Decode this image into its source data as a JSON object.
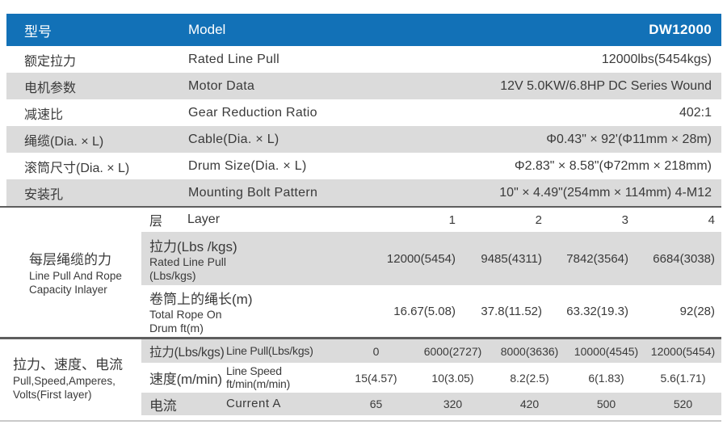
{
  "colors": {
    "accent": "#1271B7",
    "header_text": "#FFFFFF",
    "row_shade": "#DBDBDB",
    "text": "#3A3A3A",
    "divider_dark": "#5E5E5E",
    "divider_light": "#C9C9C9"
  },
  "header": {
    "cn": "型号",
    "en": "Model",
    "value": "DW12000"
  },
  "spec_rows": [
    {
      "cn": "额定拉力",
      "en": "Rated Line Pull",
      "value": "12000lbs(5454kgs)"
    },
    {
      "cn": "电机参数",
      "en": "Motor Data",
      "value": "12V 5.0KW/6.8HP DC Series Wound"
    },
    {
      "cn": "减速比",
      "en": "Gear Reduction Ratio",
      "value": "402:1"
    },
    {
      "cn": "绳缆(Dia. × L)",
      "en": "Cable(Dia. × L)",
      "value": "Φ0.43\" × 92'(Φ11mm × 28m)"
    },
    {
      "cn": "滚筒尺寸(Dia. × L)",
      "en": "Drum Size(Dia. × L)",
      "value": "Φ2.83\" × 8.58\"(Φ72mm × 218mm)"
    },
    {
      "cn": "安装孔",
      "en": "Mounting Bolt Pattern",
      "value": "10\" × 4.49\"(254mm × 114mm) 4-M12"
    }
  ],
  "layer_section": {
    "label_cn": "每层绳缆的力",
    "label_en1": "Line Pull And Rope",
    "label_en2": "Capacity Inlayer",
    "layer_row": {
      "cn": "层",
      "en": "Layer",
      "v0": "1",
      "v1": "2",
      "v2": "3",
      "v3": "4"
    },
    "pull_row": {
      "cn": "拉力(Lbs /kgs)",
      "en1": "Rated Line Pull",
      "en2": "(Lbs/kgs)",
      "v0": "12000(5454)",
      "v1": "9485(4311)",
      "v2": "7842(3564)",
      "v3": "6684(3038)"
    },
    "rope_row": {
      "cn": "卷筒上的绳长(m)",
      "en1": "Total Rope On",
      "en2": "Drum ft(m)",
      "v0": "16.67(5.08)",
      "v1": "37.8(11.52)",
      "v2": "63.32(19.3)",
      "v3": "92(28)"
    }
  },
  "speed_section": {
    "label_cn": "拉力、速度、电流",
    "label_en1": "Pull,Speed,Amperes,",
    "label_en2": "Volts(First layer)",
    "line_pull_row": {
      "cn": "拉力(Lbs/kgs)",
      "en": "Line Pull(Lbs/kgs)",
      "v0": "0",
      "v1": "6000(2727)",
      "v2": "8000(3636)",
      "v3": "10000(4545)",
      "v4": "12000(5454)"
    },
    "line_speed_row": {
      "cn": "速度(m/min)",
      "en1": "Line Speed",
      "en2": "ft/min(m/min)",
      "v0": "15(4.57)",
      "v1": "10(3.05)",
      "v2": "8.2(2.5)",
      "v3": "6(1.83)",
      "v4": "5.6(1.71)"
    },
    "current_row": {
      "cn": "电流",
      "en": "Current  A",
      "v0": "65",
      "v1": "320",
      "v2": "420",
      "v3": "500",
      "v4": "520"
    }
  }
}
